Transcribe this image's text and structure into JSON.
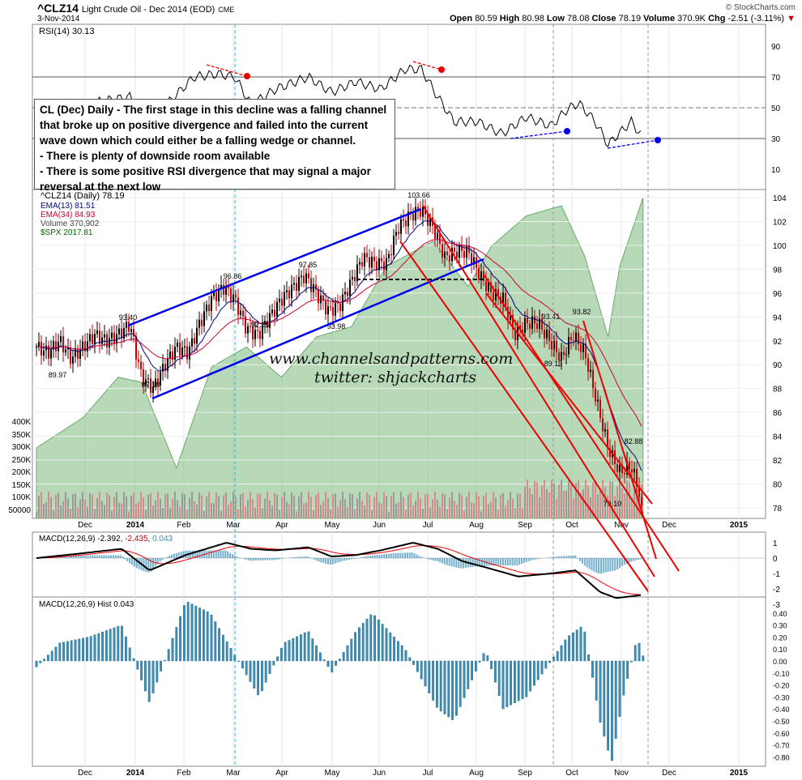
{
  "header": {
    "symbol": "^CLZ14",
    "name": "Light Crude Oil - Dec 2014 (EOD)",
    "exchange": "CME",
    "date": "3-Nov-2014",
    "brand": "© StockCharts.com",
    "open_label": "Open",
    "open": "80.59",
    "high_label": "High",
    "high": "80.98",
    "low_label": "Low",
    "low": "78.08",
    "close_label": "Close",
    "close": "78.19",
    "volume_label": "Volume",
    "volume": "370.9K",
    "chg_label": "Chg",
    "chg": "-2.51 (-3.11%)"
  },
  "rsi_label": "RSI(14) 30.13",
  "legend": {
    "price": "^CLZ14 (Daily) 78.19",
    "ema13": "EMA(13) 81.51",
    "ema34": "EMA(34) 84.93",
    "volume": "Volume 370,902",
    "spx": "$SPX 2017.81"
  },
  "note": {
    "lines": [
      "CL (Dec) Daily - The first stage in this decline was a falling channel",
      "that broke up on positive divergence and failed into the current",
      "wave down which could either be a falling wedge or channel.",
      "- There is plenty of downside room available",
      "- There is some positive RSI divergence that may signal a major",
      "reversal at the next low"
    ]
  },
  "watermark": {
    "site": "www.channelsandpatterns.com",
    "twitter": "twitter: shjackcharts"
  },
  "macd_label": "MACD(12,26,9)",
  "macd_values": {
    "macd": "-2.392",
    "signal": "-2.435",
    "hist": "0.043"
  },
  "hist_label": "MACD(12,26,9) Hist 0.043",
  "colors": {
    "ema13": "#000080",
    "ema34": "#cc0033",
    "spx": "#7dba7d",
    "up": "#000000",
    "down": "#cc0000",
    "trend_blue": "#0000ee",
    "trend_red": "#ee0000",
    "hist": "#3b8fb8"
  },
  "chart_data": [
    {
      "type": "candlestick",
      "title": "^CLZ14 (Daily)",
      "x_unit": "weeks since 8-Nov-2013",
      "x_labels": [
        "Dec",
        "2014",
        "Feb",
        "Mar",
        "Apr",
        "May",
        "Jun",
        "Jul",
        "Aug",
        "Sep",
        "Oct",
        "Nov",
        "Dec",
        "2015"
      ],
      "y_ticks": [
        78,
        80,
        82,
        84,
        86,
        88,
        90,
        92,
        94,
        96,
        98,
        100,
        102,
        104
      ],
      "volume_ticks": [
        "400K",
        "350K",
        "300K",
        "250K",
        "200K",
        "150K",
        "100K",
        "50000"
      ],
      "weekly_close": [
        91.5,
        91,
        92,
        90.5,
        91.5,
        92.5,
        92,
        92.5,
        93.4,
        89,
        88,
        90,
        91.5,
        91,
        93.5,
        95.5,
        96.5,
        95.5,
        93,
        92.5,
        94,
        95.5,
        96.5,
        97.5,
        96,
        94.5,
        95,
        97,
        99,
        98.5,
        98.5,
        101.5,
        102.5,
        103,
        101.5,
        99,
        99.5,
        99.5,
        97.5,
        96,
        95.5,
        92.5,
        93.5,
        93.5,
        92,
        90.5,
        92.5,
        91,
        87,
        83,
        81,
        81.5,
        78.2
      ],
      "spx_keypoints": [
        [
          0,
          1770
        ],
        [
          4,
          1800
        ],
        [
          7,
          1840
        ],
        [
          9,
          1835
        ],
        [
          12,
          1750
        ],
        [
          15,
          1850
        ],
        [
          18,
          1870
        ],
        [
          21,
          1840
        ],
        [
          24,
          1880
        ],
        [
          27,
          1890
        ],
        [
          30,
          1950
        ],
        [
          34,
          1975
        ],
        [
          37,
          1930
        ],
        [
          39,
          1970
        ],
        [
          42,
          2000
        ],
        [
          45,
          2010
        ],
        [
          47,
          1960
        ],
        [
          49,
          1880
        ],
        [
          50,
          1950
        ],
        [
          52,
          2018
        ]
      ],
      "price_labels": [
        "93.40",
        "96.86",
        "97.85",
        "103.66",
        "89.97",
        "87.18",
        "92.25",
        "93.98",
        "93.41",
        "93.82",
        "89.13",
        "82.88",
        "79.10"
      ]
    },
    {
      "type": "line",
      "title": "RSI(14)",
      "y_ticks": [
        90,
        70,
        50,
        30,
        10
      ],
      "keypoints": [
        [
          0,
          41
        ],
        [
          3.8,
          52
        ],
        [
          8,
          57
        ],
        [
          9.7,
          41
        ],
        [
          13.5,
          70
        ],
        [
          15.6,
          72
        ],
        [
          17,
          70
        ],
        [
          18.4,
          52
        ],
        [
          20.5,
          62
        ],
        [
          23.3,
          70
        ],
        [
          25.3,
          60
        ],
        [
          27.4,
          67
        ],
        [
          29.5,
          62
        ],
        [
          31.6,
          75
        ],
        [
          33,
          75
        ],
        [
          34.4,
          57
        ],
        [
          35.8,
          41
        ],
        [
          37.8,
          41
        ],
        [
          39.9,
          33
        ],
        [
          42,
          44
        ],
        [
          44.1,
          38
        ],
        [
          45.5,
          49
        ],
        [
          46.5,
          53
        ],
        [
          47.9,
          41
        ],
        [
          49,
          26
        ],
        [
          50.3,
          36
        ],
        [
          51,
          41
        ],
        [
          52,
          30.13
        ]
      ]
    },
    {
      "type": "line",
      "title": "MACD(12,26,9)",
      "y_ticks": [
        "1",
        "0",
        "-1",
        "-2",
        "-3"
      ],
      "keypoints": [
        [
          0,
          0
        ],
        [
          3.8,
          0.3
        ],
        [
          7.3,
          0.6
        ],
        [
          9.7,
          -0.8
        ],
        [
          12.8,
          0.2
        ],
        [
          16.3,
          1.0
        ],
        [
          18.4,
          0.6
        ],
        [
          20.5,
          0.5
        ],
        [
          23.3,
          0.7
        ],
        [
          25.3,
          0.1
        ],
        [
          27.4,
          0.2
        ],
        [
          29.5,
          0.5
        ],
        [
          32.3,
          1.0
        ],
        [
          34.4,
          0.6
        ],
        [
          36.5,
          -0.2
        ],
        [
          38.5,
          -0.6
        ],
        [
          41.3,
          -1.2
        ],
        [
          44.1,
          -1.0
        ],
        [
          46.2,
          -0.8
        ],
        [
          48.3,
          -2.2
        ],
        [
          49.7,
          -2.6
        ],
        [
          52,
          -2.392
        ]
      ]
    },
    {
      "type": "bar",
      "title": "MACD(12,26,9) Hist",
      "y_ticks": [
        "0.40",
        "0.30",
        "0.20",
        "0.10",
        "0.00",
        "-0.10",
        "-0.20",
        "-0.30",
        "-0.40",
        "-0.50",
        "-0.60",
        "-0.70",
        "-0.80"
      ],
      "keypoints": [
        [
          0,
          -0.05
        ],
        [
          2,
          0.15
        ],
        [
          4.5,
          0.2
        ],
        [
          7.3,
          0.3
        ],
        [
          9.7,
          -0.35
        ],
        [
          12.8,
          0.5
        ],
        [
          14.9,
          0.4
        ],
        [
          17,
          0.05
        ],
        [
          19.1,
          -0.3
        ],
        [
          21.2,
          0.15
        ],
        [
          23.3,
          0.25
        ],
        [
          25.3,
          -0.1
        ],
        [
          27.4,
          0.25
        ],
        [
          28.8,
          0.4
        ],
        [
          31.6,
          0.1
        ],
        [
          34.4,
          -0.4
        ],
        [
          35.8,
          -0.5
        ],
        [
          38.5,
          0.1
        ],
        [
          40,
          -0.4
        ],
        [
          42,
          -0.3
        ],
        [
          44.8,
          0.1
        ],
        [
          45.5,
          0.2
        ],
        [
          46.9,
          0.3
        ],
        [
          48.3,
          -0.5
        ],
        [
          49.3,
          -0.85
        ],
        [
          50.3,
          -0.3
        ],
        [
          51.5,
          0.2
        ],
        [
          52,
          0.043
        ]
      ]
    }
  ]
}
